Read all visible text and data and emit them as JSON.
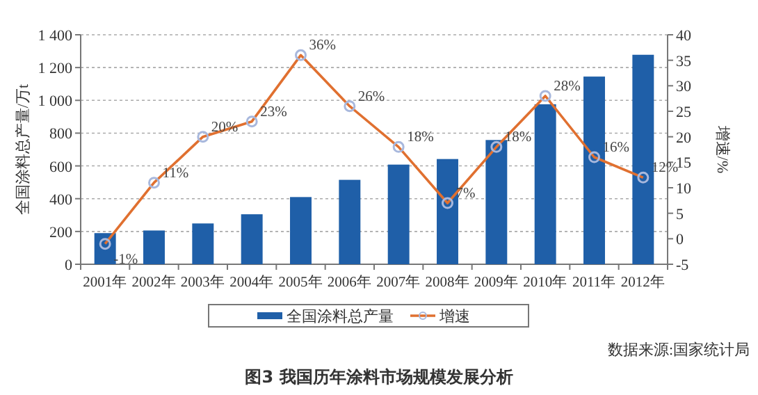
{
  "chart_data": {
    "type": "bar",
    "title": "图3  我国历年涂料市场规模发展分析",
    "ylabel": "全国涂料总产量/万t",
    "y2label": "增速/%",
    "categories": [
      "2001年",
      "2002年",
      "2003年",
      "2004年",
      "2005年",
      "2006年",
      "2007年",
      "2008年",
      "2009年",
      "2010年",
      "2011年",
      "2012年"
    ],
    "series": [
      {
        "name": "全国涂料总产量",
        "color": "#1f5fa8",
        "values": [
          190,
          206,
          249,
          305,
          410,
          515,
          608,
          642,
          758,
          976,
          1145,
          1278
        ]
      },
      {
        "name": "增速",
        "type": "line",
        "axis": "y2",
        "color": "#e07030",
        "marker": "circle",
        "values": [
          -1,
          11,
          20,
          23,
          36,
          26,
          18,
          7,
          18,
          28,
          16,
          12
        ],
        "value_labels": [
          "-1%",
          "11%",
          "20%",
          "23%",
          "36%",
          "26%",
          "18%",
          "7%",
          "18%",
          "28%",
          "16%",
          "12%"
        ]
      }
    ],
    "ylim": [
      0,
      1400
    ],
    "yticks": [
      0,
      200,
      400,
      600,
      800,
      {
        "value": 1000,
        "label": "1 000"
      },
      {
        "value": 1200,
        "label": "1 200"
      },
      {
        "value": 1400,
        "label": "1 400"
      }
    ],
    "y2lim": [
      -5,
      40
    ],
    "y2ticks": [
      -5,
      0,
      5,
      10,
      15,
      20,
      25,
      30,
      35,
      40
    ],
    "grid": "y",
    "legend": "bottom",
    "annotations": [
      "数据来源:国家统计局"
    ]
  }
}
